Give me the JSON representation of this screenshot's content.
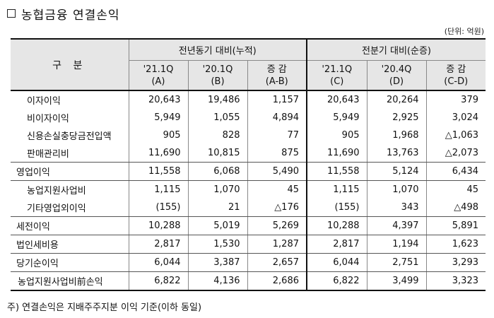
{
  "title": "농협금융 연결손익",
  "unit": "(단위: 억원)",
  "header": {
    "category": "구 분",
    "group_yoy": "전년동기 대비(누적)",
    "group_qoq": "전분기 대비(순증)",
    "cols": [
      {
        "period": "'21.1Q",
        "code": "(A)"
      },
      {
        "period": "'20.1Q",
        "code": "(B)"
      },
      {
        "period": "증 감",
        "code": "(A-B)"
      },
      {
        "period": "'21.1Q",
        "code": "(C)"
      },
      {
        "period": "'20.4Q",
        "code": "(D)"
      },
      {
        "period": "증 감",
        "code": "(C-D)"
      }
    ]
  },
  "rows": [
    {
      "label": "이자이익",
      "values": [
        "20,643",
        "19,486",
        "1,157",
        "20,643",
        "20,264",
        "379"
      ]
    },
    {
      "label": "비이자이익",
      "values": [
        "5,949",
        "1,055",
        "4,894",
        "5,949",
        "2,925",
        "3,024"
      ]
    },
    {
      "label": "신용손실충당금전입액",
      "values": [
        "905",
        "828",
        "77",
        "905",
        "1,968",
        "△1,063"
      ]
    },
    {
      "label": "판매관리비",
      "values": [
        "11,690",
        "10,815",
        "875",
        "11,690",
        "13,763",
        "△2,073"
      ]
    },
    {
      "label": "영업이익",
      "values": [
        "11,558",
        "6,068",
        "5,490",
        "11,558",
        "5,124",
        "6,434"
      ]
    },
    {
      "label": "농업지원사업비",
      "values": [
        "1,115",
        "1,070",
        "45",
        "1,115",
        "1,070",
        "45"
      ]
    },
    {
      "label": "기타영업외이익",
      "values": [
        "(155)",
        "21",
        "△176",
        "(155)",
        "343",
        "△498"
      ]
    },
    {
      "label": "세전이익",
      "values": [
        "10,288",
        "5,019",
        "5,269",
        "10,288",
        "4,397",
        "5,891"
      ]
    },
    {
      "label": "법인세비용",
      "values": [
        "2,817",
        "1,530",
        "1,287",
        "2,817",
        "1,194",
        "1,623"
      ]
    },
    {
      "label": "당기순이익",
      "values": [
        "6,044",
        "3,387",
        "2,657",
        "6,044",
        "2,751",
        "3,293"
      ]
    },
    {
      "label": "농업지원사업비前손익",
      "values": [
        "6,822",
        "4,136",
        "2,686",
        "6,822",
        "3,499",
        "3,323"
      ]
    }
  ],
  "note": "주) 연결손익은 지배주주지분 이익 기준(이하 동일)"
}
